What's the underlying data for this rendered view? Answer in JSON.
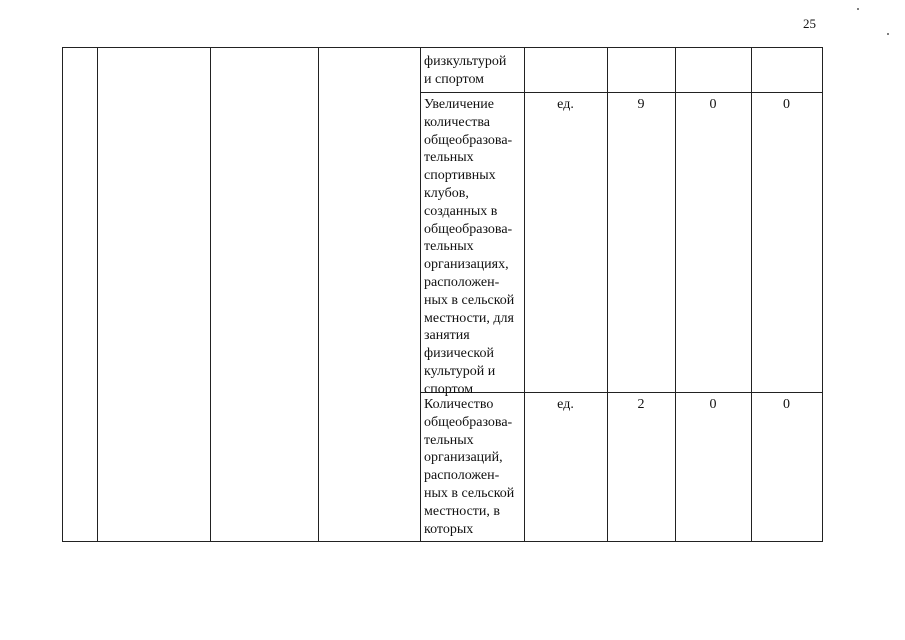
{
  "page_number": "25",
  "rows": [
    {
      "indicator": "физкультурой\nи спортом",
      "unit": "",
      "v1": "",
      "v2": "",
      "v3": ""
    },
    {
      "indicator": "Увеличение\nколичества\nобщеобразова-\nтельных\nспортивных\nклубов,\nсозданных        в\nобщеобразова-\nтельных\nорганизациях,\nрасположен-\nных в сельской\nместности, для\nзанятия\nфизической\nкультурой       и\nспортом",
      "unit": "ед.",
      "v1": "9",
      "v2": "0",
      "v3": "0"
    },
    {
      "indicator": "Количество\nобщеобразова-\nтельных\nорганизаций,\nрасположен-\nных в сельской\nместности,       в\nкоторых",
      "unit": "ед.",
      "v1": "2",
      "v2": "0",
      "v3": "0"
    }
  ]
}
